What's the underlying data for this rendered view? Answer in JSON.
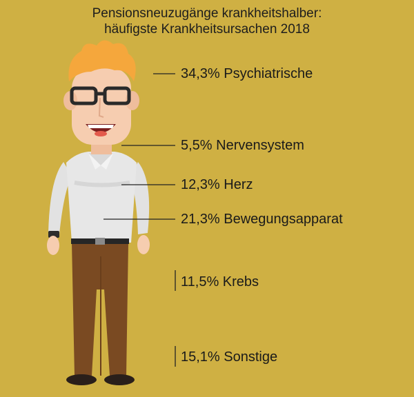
{
  "chart_data": {
    "type": "bar",
    "title": [
      "Pensionsneuzugänge krankheitshalber:",
      "häufigste Krankheitsursachen 2018"
    ],
    "unit": "%",
    "categories": [
      "Psychiatrische",
      "Nervensystem",
      "Herz",
      "Bewegungsapparat",
      "Krebs",
      "Sonstige"
    ],
    "values": [
      34.3,
      5.5,
      12.3,
      21.3,
      11.5,
      15.1
    ],
    "labels": [
      "34,3% Psychiatrische",
      "5,5% Nervensystem",
      "12,3% Herz",
      "21,3% Bewegungsapparat",
      "11,5% Krebs",
      "15,1% Sonstige"
    ]
  },
  "colors": {
    "background": "#cfb043",
    "hair": "#f5a73c",
    "skin": "#f6cdb0",
    "shirt": "#e7e7e7",
    "trousers": "#7a4a22",
    "shoes": "#2a1f1a",
    "leader": "#222222"
  }
}
